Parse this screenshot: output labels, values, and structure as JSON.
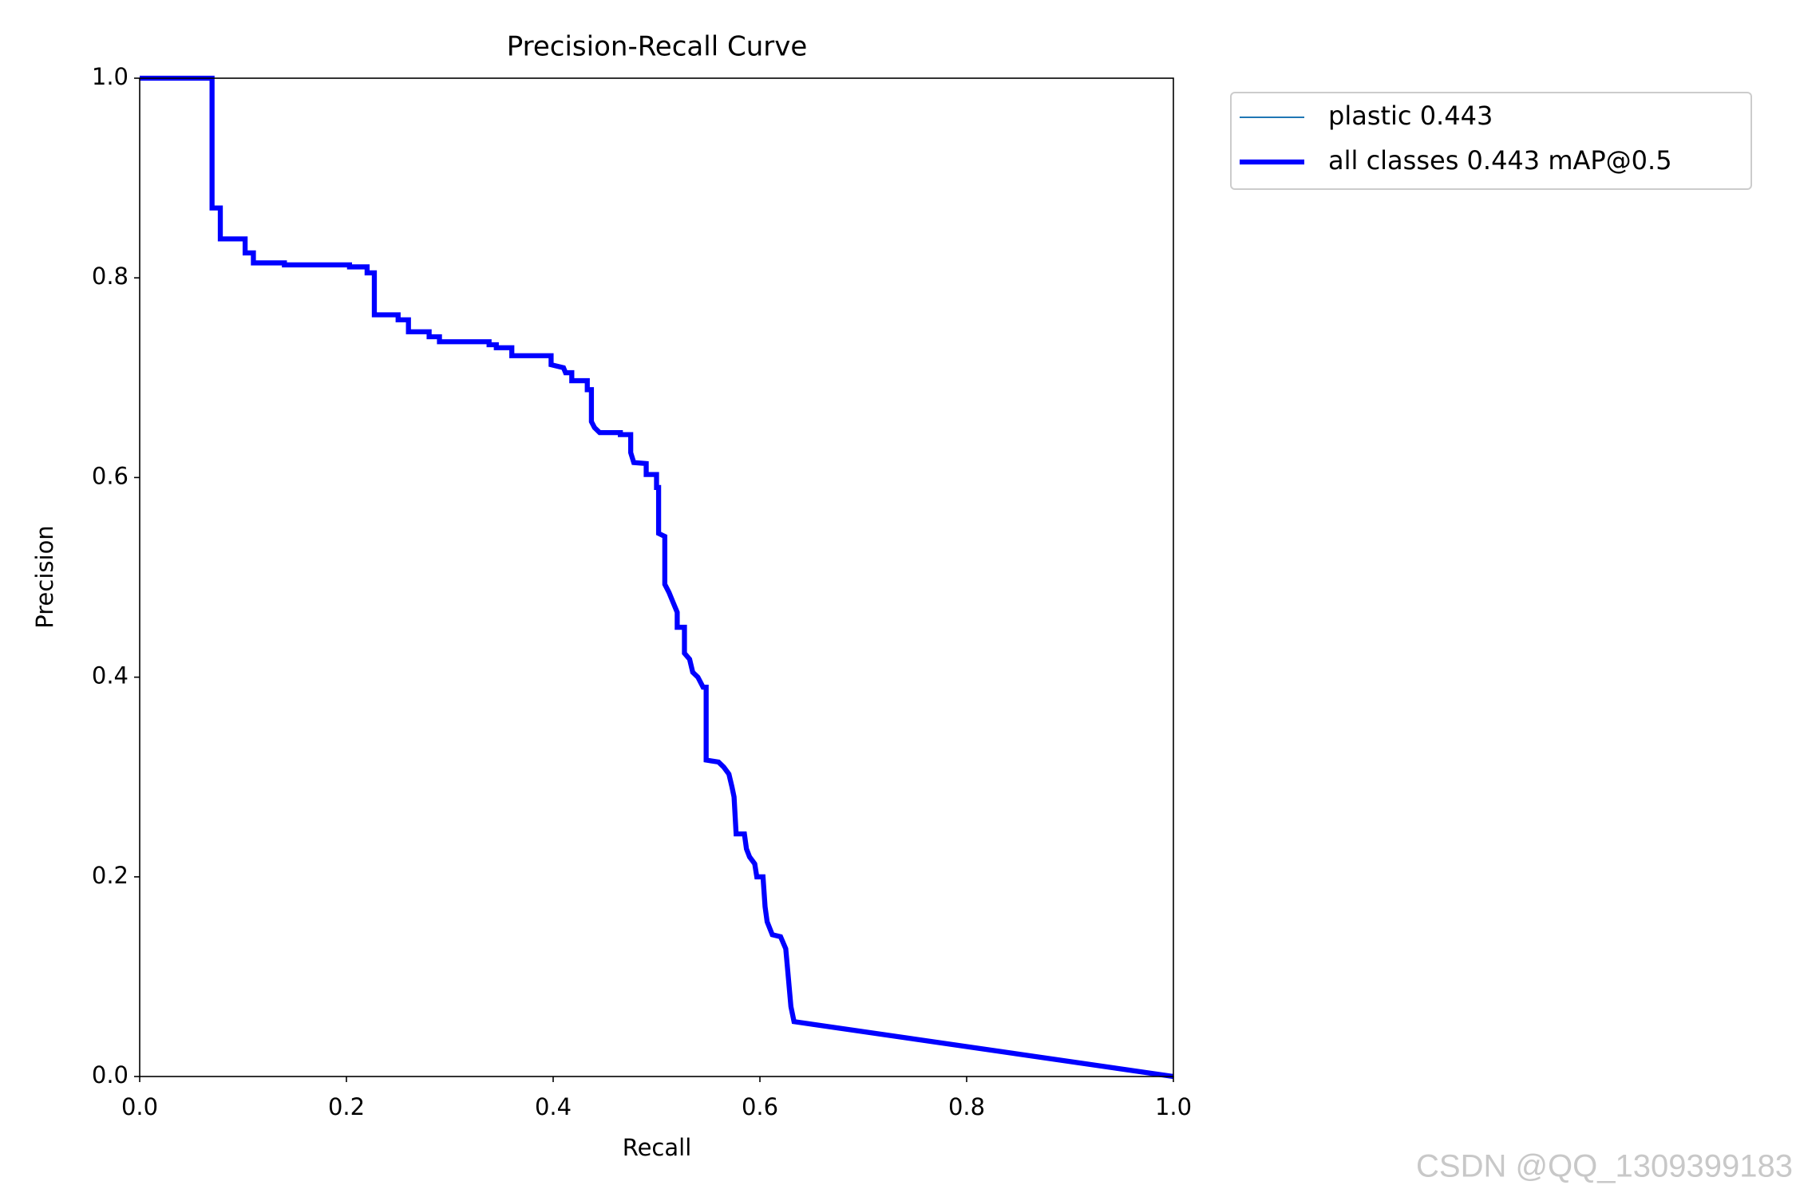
{
  "chart_data": {
    "type": "line",
    "title": "Precision-Recall Curve",
    "x_label": "Recall",
    "y_label": "Precision",
    "x": [
      0,
      0.07,
      0.07,
      0.078,
      0.078,
      0.102,
      0.102,
      0.11,
      0.11,
      0.14,
      0.14,
      0.203,
      0.203,
      0.22,
      0.22,
      0.227,
      0.227,
      0.25,
      0.25,
      0.26,
      0.26,
      0.28,
      0.28,
      0.29,
      0.29,
      0.338,
      0.338,
      0.345,
      0.345,
      0.36,
      0.36,
      0.398,
      0.398,
      0.41,
      0.412,
      0.418,
      0.418,
      0.433,
      0.433,
      0.437,
      0.437,
      0.44,
      0.445,
      0.465,
      0.465,
      0.475,
      0.475,
      0.478,
      0.49,
      0.49,
      0.5,
      0.5,
      0.502,
      0.502,
      0.508,
      0.508,
      0.512,
      0.516,
      0.52,
      0.52,
      0.527,
      0.527,
      0.532,
      0.535,
      0.54,
      0.545,
      0.548,
      0.548,
      0.56,
      0.565,
      0.57,
      0.573,
      0.575,
      0.577,
      0.585,
      0.587,
      0.59,
      0.595,
      0.597,
      0.603,
      0.605,
      0.607,
      0.612,
      0.62,
      0.625,
      0.627,
      0.63,
      0.633,
      1
    ],
    "series": [
      {
        "name": "plastic 0.443",
        "color": "#1f77b4",
        "linewidth": 1,
        "values": [
          1,
          1,
          0.87,
          0.87,
          0.839,
          0.839,
          0.825,
          0.825,
          0.815,
          0.815,
          0.813,
          0.813,
          0.811,
          0.811,
          0.805,
          0.805,
          0.763,
          0.763,
          0.758,
          0.758,
          0.746,
          0.746,
          0.741,
          0.741,
          0.736,
          0.736,
          0.733,
          0.733,
          0.73,
          0.73,
          0.722,
          0.722,
          0.713,
          0.71,
          0.705,
          0.705,
          0.697,
          0.697,
          0.688,
          0.688,
          0.656,
          0.65,
          0.645,
          0.645,
          0.643,
          0.643,
          0.625,
          0.615,
          0.614,
          0.603,
          0.603,
          0.59,
          0.59,
          0.544,
          0.541,
          0.493,
          0.485,
          0.475,
          0.465,
          0.45,
          0.45,
          0.424,
          0.418,
          0.405,
          0.4,
          0.39,
          0.39,
          0.317,
          0.315,
          0.31,
          0.303,
          0.29,
          0.28,
          0.243,
          0.243,
          0.228,
          0.22,
          0.213,
          0.2,
          0.2,
          0.17,
          0.155,
          0.142,
          0.14,
          0.128,
          0.105,
          0.07,
          0.055,
          0
        ]
      },
      {
        "name": "all classes 0.443 mAP@0.5",
        "color": "#0000ff",
        "linewidth": 3,
        "values": [
          1,
          1,
          0.87,
          0.87,
          0.839,
          0.839,
          0.825,
          0.825,
          0.815,
          0.815,
          0.813,
          0.813,
          0.811,
          0.811,
          0.805,
          0.805,
          0.763,
          0.763,
          0.758,
          0.758,
          0.746,
          0.746,
          0.741,
          0.741,
          0.736,
          0.736,
          0.733,
          0.733,
          0.73,
          0.73,
          0.722,
          0.722,
          0.713,
          0.71,
          0.705,
          0.705,
          0.697,
          0.697,
          0.688,
          0.688,
          0.656,
          0.65,
          0.645,
          0.645,
          0.643,
          0.643,
          0.625,
          0.615,
          0.614,
          0.603,
          0.603,
          0.59,
          0.59,
          0.544,
          0.541,
          0.493,
          0.485,
          0.475,
          0.465,
          0.45,
          0.45,
          0.424,
          0.418,
          0.405,
          0.4,
          0.39,
          0.39,
          0.317,
          0.315,
          0.31,
          0.303,
          0.29,
          0.28,
          0.243,
          0.243,
          0.228,
          0.22,
          0.213,
          0.2,
          0.2,
          0.17,
          0.155,
          0.142,
          0.14,
          0.128,
          0.105,
          0.07,
          0.055,
          0
        ]
      }
    ],
    "xlim": [
      0,
      1
    ],
    "ylim": [
      0,
      1
    ],
    "xticks": [
      {
        "value": 0,
        "label": "0.0"
      },
      0.2,
      0.4,
      0.6,
      0.8,
      {
        "value": 1,
        "label": "1.0"
      }
    ],
    "yticks": [
      {
        "value": 0,
        "label": "0.0"
      },
      0.2,
      0.4,
      0.6,
      0.8,
      {
        "value": 1,
        "label": "1.0"
      }
    ],
    "grid": false,
    "legend": "outside upper right"
  },
  "watermark": "CSDN @QQ_1309399183"
}
